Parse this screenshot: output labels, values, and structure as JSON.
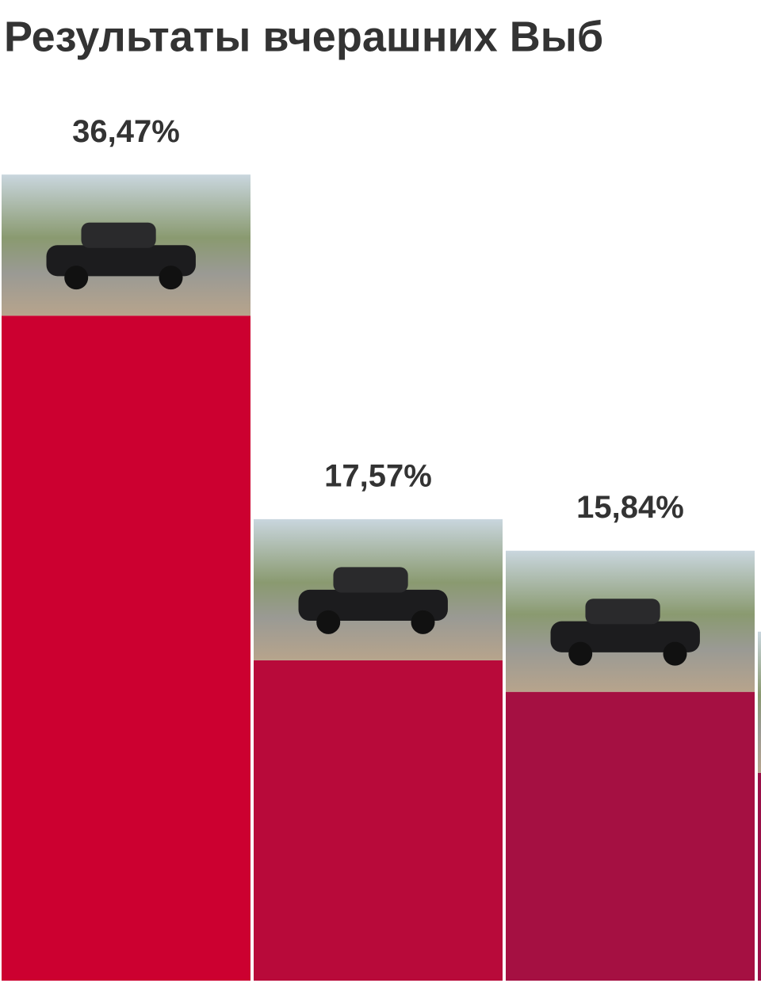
{
  "chart_data": {
    "type": "bar",
    "title": "Результаты вчерашних Выб",
    "values": [
      36.47,
      17.57,
      15.84,
      11.4
    ],
    "value_labels": [
      "36,47%",
      "17,57%",
      "15,84%",
      null
    ],
    "colors": [
      "#cc0030",
      "#b80a3a",
      "#a51042",
      "#9a1047"
    ]
  }
}
